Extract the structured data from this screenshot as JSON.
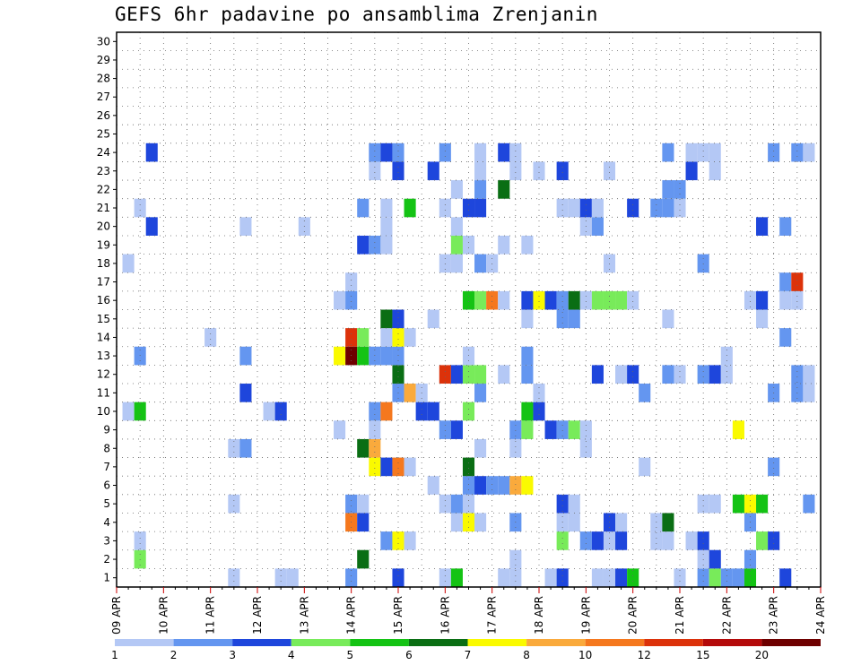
{
  "chart_data": {
    "type": "heatmap",
    "title": "GEFS 6hr padavine po ansamblima Zrenjanin",
    "x_tick_labels": [
      "09 APR",
      "10 APR",
      "11 APR",
      "12 APR",
      "13 APR",
      "14 APR",
      "15 APR",
      "16 APR",
      "17 APR",
      "18 APR",
      "19 APR",
      "20 APR",
      "21 APR",
      "22 APR",
      "23 APR",
      "24 APR"
    ],
    "y_tick_labels": [
      "1",
      "2",
      "3",
      "4",
      "5",
      "6",
      "7",
      "8",
      "9",
      "10",
      "11",
      "12",
      "13",
      "14",
      "15",
      "16",
      "17",
      "18",
      "19",
      "20",
      "21",
      "22",
      "23",
      "24",
      "25",
      "26",
      "27",
      "28",
      "29",
      "30"
    ],
    "y_range": [
      0,
      30
    ],
    "time_steps": 61,
    "time_step_hours": 6,
    "grid": "dotted",
    "legend_placement": "bottom",
    "legend": {
      "thresholds": [
        "1",
        "2",
        "3",
        "4",
        "5",
        "6",
        "7",
        "8",
        "10",
        "12",
        "15",
        "20"
      ],
      "colors": [
        "#b4c8f5",
        "#6496f0",
        "#1e46dc",
        "#78eb5a",
        "#14c314",
        "#0a6e14",
        "#fafa00",
        "#faaa3c",
        "#f5781e",
        "#dc320a",
        "#b40a0a",
        "#6e0000"
      ]
    },
    "cells": [
      [
        10,
        1,
        "#b4c8f5"
      ],
      [
        14,
        1,
        "#b4c8f5"
      ],
      [
        15,
        1,
        "#b4c8f5"
      ],
      [
        20,
        1,
        "#6496f0"
      ],
      [
        24,
        1,
        "#1e46dc"
      ],
      [
        28,
        1,
        "#b4c8f5"
      ],
      [
        29,
        1,
        "#14c314"
      ],
      [
        33,
        1,
        "#b4c8f5"
      ],
      [
        34,
        1,
        "#b4c8f5"
      ],
      [
        37,
        1,
        "#b4c8f5"
      ],
      [
        38,
        1,
        "#1e46dc"
      ],
      [
        41,
        1,
        "#b4c8f5"
      ],
      [
        42,
        1,
        "#b4c8f5"
      ],
      [
        43,
        1,
        "#1e46dc"
      ],
      [
        44,
        1,
        "#14c314"
      ],
      [
        48,
        1,
        "#b4c8f5"
      ],
      [
        50,
        1,
        "#6496f0"
      ],
      [
        51,
        1,
        "#78eb5a"
      ],
      [
        52,
        1,
        "#6496f0"
      ],
      [
        53,
        1,
        "#6496f0"
      ],
      [
        54,
        1,
        "#14c314"
      ],
      [
        57,
        1,
        "#1e46dc"
      ],
      [
        2,
        2,
        "#78eb5a"
      ],
      [
        21,
        2,
        "#0a6e14"
      ],
      [
        34,
        2,
        "#b4c8f5"
      ],
      [
        50,
        2,
        "#b4c8f5"
      ],
      [
        51,
        2,
        "#1e46dc"
      ],
      [
        54,
        2,
        "#6496f0"
      ],
      [
        2,
        3,
        "#b4c8f5"
      ],
      [
        23,
        3,
        "#6496f0"
      ],
      [
        24,
        3,
        "#fafa00"
      ],
      [
        25,
        3,
        "#b4c8f5"
      ],
      [
        38,
        3,
        "#78eb5a"
      ],
      [
        40,
        3,
        "#6496f0"
      ],
      [
        41,
        3,
        "#1e46dc"
      ],
      [
        42,
        3,
        "#b4c8f5"
      ],
      [
        43,
        3,
        "#1e46dc"
      ],
      [
        46,
        3,
        "#b4c8f5"
      ],
      [
        47,
        3,
        "#b4c8f5"
      ],
      [
        49,
        3,
        "#b4c8f5"
      ],
      [
        50,
        3,
        "#1e46dc"
      ],
      [
        55,
        3,
        "#78eb5a"
      ],
      [
        56,
        3,
        "#1e46dc"
      ],
      [
        20,
        4,
        "#f5781e"
      ],
      [
        21,
        4,
        "#1e46dc"
      ],
      [
        29,
        4,
        "#b4c8f5"
      ],
      [
        30,
        4,
        "#fafa00"
      ],
      [
        31,
        4,
        "#b4c8f5"
      ],
      [
        34,
        4,
        "#6496f0"
      ],
      [
        38,
        4,
        "#b4c8f5"
      ],
      [
        39,
        4,
        "#b4c8f5"
      ],
      [
        42,
        4,
        "#1e46dc"
      ],
      [
        43,
        4,
        "#b4c8f5"
      ],
      [
        46,
        4,
        "#b4c8f5"
      ],
      [
        47,
        4,
        "#0a6e14"
      ],
      [
        54,
        4,
        "#6496f0"
      ],
      [
        10,
        5,
        "#b4c8f5"
      ],
      [
        20,
        5,
        "#6496f0"
      ],
      [
        21,
        5,
        "#b4c8f5"
      ],
      [
        28,
        5,
        "#b4c8f5"
      ],
      [
        29,
        5,
        "#6496f0"
      ],
      [
        30,
        5,
        "#b4c8f5"
      ],
      [
        38,
        5,
        "#1e46dc"
      ],
      [
        39,
        5,
        "#b4c8f5"
      ],
      [
        50,
        5,
        "#b4c8f5"
      ],
      [
        51,
        5,
        "#b4c8f5"
      ],
      [
        53,
        5,
        "#14c314"
      ],
      [
        54,
        5,
        "#fafa00"
      ],
      [
        55,
        5,
        "#14c314"
      ],
      [
        59,
        5,
        "#6496f0"
      ],
      [
        27,
        6,
        "#b4c8f5"
      ],
      [
        30,
        6,
        "#6496f0"
      ],
      [
        31,
        6,
        "#1e46dc"
      ],
      [
        32,
        6,
        "#6496f0"
      ],
      [
        33,
        6,
        "#6496f0"
      ],
      [
        34,
        6,
        "#faaa3c"
      ],
      [
        35,
        6,
        "#fafa00"
      ],
      [
        22,
        7,
        "#fafa00"
      ],
      [
        23,
        7,
        "#1e46dc"
      ],
      [
        24,
        7,
        "#f5781e"
      ],
      [
        25,
        7,
        "#b4c8f5"
      ],
      [
        30,
        7,
        "#0a6e14"
      ],
      [
        45,
        7,
        "#b4c8f5"
      ],
      [
        56,
        7,
        "#6496f0"
      ],
      [
        10,
        8,
        "#b4c8f5"
      ],
      [
        11,
        8,
        "#6496f0"
      ],
      [
        21,
        8,
        "#0a6e14"
      ],
      [
        22,
        8,
        "#faaa3c"
      ],
      [
        31,
        8,
        "#b4c8f5"
      ],
      [
        34,
        8,
        "#b4c8f5"
      ],
      [
        40,
        8,
        "#b4c8f5"
      ],
      [
        19,
        9,
        "#b4c8f5"
      ],
      [
        22,
        9,
        "#b4c8f5"
      ],
      [
        28,
        9,
        "#6496f0"
      ],
      [
        29,
        9,
        "#1e46dc"
      ],
      [
        34,
        9,
        "#6496f0"
      ],
      [
        35,
        9,
        "#78eb5a"
      ],
      [
        37,
        9,
        "#1e46dc"
      ],
      [
        38,
        9,
        "#6496f0"
      ],
      [
        39,
        9,
        "#78eb5a"
      ],
      [
        40,
        9,
        "#b4c8f5"
      ],
      [
        53,
        9,
        "#fafa00"
      ],
      [
        1,
        10,
        "#b4c8f5"
      ],
      [
        2,
        10,
        "#14c314"
      ],
      [
        13,
        10,
        "#b4c8f5"
      ],
      [
        14,
        10,
        "#1e46dc"
      ],
      [
        22,
        10,
        "#6496f0"
      ],
      [
        23,
        10,
        "#f5781e"
      ],
      [
        26,
        10,
        "#1e46dc"
      ],
      [
        27,
        10,
        "#1e46dc"
      ],
      [
        30,
        10,
        "#78eb5a"
      ],
      [
        35,
        10,
        "#14c314"
      ],
      [
        36,
        10,
        "#1e46dc"
      ],
      [
        11,
        11,
        "#1e46dc"
      ],
      [
        24,
        11,
        "#6496f0"
      ],
      [
        25,
        11,
        "#faaa3c"
      ],
      [
        26,
        11,
        "#b4c8f5"
      ],
      [
        31,
        11,
        "#6496f0"
      ],
      [
        36,
        11,
        "#b4c8f5"
      ],
      [
        45,
        11,
        "#6496f0"
      ],
      [
        56,
        11,
        "#6496f0"
      ],
      [
        58,
        11,
        "#6496f0"
      ],
      [
        59,
        11,
        "#b4c8f5"
      ],
      [
        24,
        12,
        "#0a6e14"
      ],
      [
        28,
        12,
        "#dc320a"
      ],
      [
        29,
        12,
        "#1e46dc"
      ],
      [
        30,
        12,
        "#78eb5a"
      ],
      [
        31,
        12,
        "#78eb5a"
      ],
      [
        33,
        12,
        "#b4c8f5"
      ],
      [
        35,
        12,
        "#6496f0"
      ],
      [
        41,
        12,
        "#1e46dc"
      ],
      [
        43,
        12,
        "#b4c8f5"
      ],
      [
        44,
        12,
        "#1e46dc"
      ],
      [
        47,
        12,
        "#6496f0"
      ],
      [
        48,
        12,
        "#b4c8f5"
      ],
      [
        50,
        12,
        "#6496f0"
      ],
      [
        51,
        12,
        "#1e46dc"
      ],
      [
        52,
        12,
        "#b4c8f5"
      ],
      [
        58,
        12,
        "#6496f0"
      ],
      [
        59,
        12,
        "#b4c8f5"
      ],
      [
        19,
        13,
        "#fafa00"
      ],
      [
        20,
        13,
        "#6e0000"
      ],
      [
        21,
        13,
        "#14c314"
      ],
      [
        22,
        13,
        "#6496f0"
      ],
      [
        23,
        13,
        "#6496f0"
      ],
      [
        24,
        13,
        "#6496f0"
      ],
      [
        2,
        13,
        "#6496f0"
      ],
      [
        11,
        13,
        "#6496f0"
      ],
      [
        30,
        13,
        "#b4c8f5"
      ],
      [
        35,
        13,
        "#6496f0"
      ],
      [
        52,
        13,
        "#b4c8f5"
      ],
      [
        20,
        14,
        "#dc320a"
      ],
      [
        21,
        14,
        "#78eb5a"
      ],
      [
        23,
        14,
        "#b4c8f5"
      ],
      [
        24,
        14,
        "#fafa00"
      ],
      [
        25,
        14,
        "#b4c8f5"
      ],
      [
        8,
        14,
        "#b4c8f5"
      ],
      [
        57,
        14,
        "#6496f0"
      ],
      [
        23,
        15,
        "#0a6e14"
      ],
      [
        24,
        15,
        "#1e46dc"
      ],
      [
        27,
        15,
        "#b4c8f5"
      ],
      [
        35,
        15,
        "#b4c8f5"
      ],
      [
        38,
        15,
        "#6496f0"
      ],
      [
        39,
        15,
        "#6496f0"
      ],
      [
        47,
        15,
        "#b4c8f5"
      ],
      [
        55,
        15,
        "#b4c8f5"
      ],
      [
        19,
        16,
        "#b4c8f5"
      ],
      [
        20,
        16,
        "#6496f0"
      ],
      [
        30,
        16,
        "#14c314"
      ],
      [
        31,
        16,
        "#78eb5a"
      ],
      [
        32,
        16,
        "#f5781e"
      ],
      [
        33,
        16,
        "#b4c8f5"
      ],
      [
        35,
        16,
        "#1e46dc"
      ],
      [
        36,
        16,
        "#fafa00"
      ],
      [
        37,
        16,
        "#1e46dc"
      ],
      [
        38,
        16,
        "#6496f0"
      ],
      [
        39,
        16,
        "#0a6e14"
      ],
      [
        40,
        16,
        "#b4c8f5"
      ],
      [
        41,
        16,
        "#78eb5a"
      ],
      [
        42,
        16,
        "#78eb5a"
      ],
      [
        43,
        16,
        "#78eb5a"
      ],
      [
        44,
        16,
        "#b4c8f5"
      ],
      [
        54,
        16,
        "#b4c8f5"
      ],
      [
        55,
        16,
        "#1e46dc"
      ],
      [
        57,
        16,
        "#b4c8f5"
      ],
      [
        58,
        16,
        "#b4c8f5"
      ],
      [
        20,
        17,
        "#b4c8f5"
      ],
      [
        57,
        17,
        "#6496f0"
      ],
      [
        58,
        17,
        "#dc320a"
      ],
      [
        1,
        18,
        "#b4c8f5"
      ],
      [
        28,
        18,
        "#b4c8f5"
      ],
      [
        29,
        18,
        "#b4c8f5"
      ],
      [
        31,
        18,
        "#6496f0"
      ],
      [
        32,
        18,
        "#b4c8f5"
      ],
      [
        42,
        18,
        "#b4c8f5"
      ],
      [
        50,
        18,
        "#6496f0"
      ],
      [
        21,
        19,
        "#1e46dc"
      ],
      [
        22,
        19,
        "#6496f0"
      ],
      [
        23,
        19,
        "#b4c8f5"
      ],
      [
        29,
        19,
        "#78eb5a"
      ],
      [
        30,
        19,
        "#b4c8f5"
      ],
      [
        33,
        19,
        "#b4c8f5"
      ],
      [
        35,
        19,
        "#b4c8f5"
      ],
      [
        3,
        20,
        "#1e46dc"
      ],
      [
        11,
        20,
        "#b4c8f5"
      ],
      [
        16,
        20,
        "#b4c8f5"
      ],
      [
        23,
        20,
        "#b4c8f5"
      ],
      [
        29,
        20,
        "#b4c8f5"
      ],
      [
        40,
        20,
        "#b4c8f5"
      ],
      [
        41,
        20,
        "#6496f0"
      ],
      [
        55,
        20,
        "#1e46dc"
      ],
      [
        57,
        20,
        "#6496f0"
      ],
      [
        2,
        21,
        "#b4c8f5"
      ],
      [
        21,
        21,
        "#6496f0"
      ],
      [
        23,
        21,
        "#b4c8f5"
      ],
      [
        25,
        21,
        "#14c314"
      ],
      [
        28,
        21,
        "#b4c8f5"
      ],
      [
        30,
        21,
        "#1e46dc"
      ],
      [
        31,
        21,
        "#1e46dc"
      ],
      [
        38,
        21,
        "#b4c8f5"
      ],
      [
        39,
        21,
        "#b4c8f5"
      ],
      [
        40,
        21,
        "#1e46dc"
      ],
      [
        41,
        21,
        "#b4c8f5"
      ],
      [
        44,
        21,
        "#1e46dc"
      ],
      [
        46,
        21,
        "#6496f0"
      ],
      [
        47,
        21,
        "#6496f0"
      ],
      [
        48,
        21,
        "#b4c8f5"
      ],
      [
        29,
        22,
        "#b4c8f5"
      ],
      [
        31,
        22,
        "#6496f0"
      ],
      [
        33,
        22,
        "#0a6e14"
      ],
      [
        47,
        22,
        "#6496f0"
      ],
      [
        48,
        22,
        "#6496f0"
      ],
      [
        22,
        23,
        "#b4c8f5"
      ],
      [
        24,
        23,
        "#1e46dc"
      ],
      [
        27,
        23,
        "#1e46dc"
      ],
      [
        31,
        23,
        "#b4c8f5"
      ],
      [
        34,
        23,
        "#b4c8f5"
      ],
      [
        36,
        23,
        "#b4c8f5"
      ],
      [
        38,
        23,
        "#1e46dc"
      ],
      [
        42,
        23,
        "#b4c8f5"
      ],
      [
        49,
        23,
        "#1e46dc"
      ],
      [
        51,
        23,
        "#b4c8f5"
      ],
      [
        3,
        24,
        "#1e46dc"
      ],
      [
        22,
        24,
        "#6496f0"
      ],
      [
        23,
        24,
        "#1e46dc"
      ],
      [
        24,
        24,
        "#6496f0"
      ],
      [
        28,
        24,
        "#6496f0"
      ],
      [
        31,
        24,
        "#b4c8f5"
      ],
      [
        33,
        24,
        "#1e46dc"
      ],
      [
        34,
        24,
        "#b4c8f5"
      ],
      [
        47,
        24,
        "#6496f0"
      ],
      [
        49,
        24,
        "#b4c8f5"
      ],
      [
        50,
        24,
        "#b4c8f5"
      ],
      [
        51,
        24,
        "#b4c8f5"
      ],
      [
        56,
        24,
        "#6496f0"
      ],
      [
        58,
        24,
        "#6496f0"
      ],
      [
        59,
        24,
        "#b4c8f5"
      ]
    ]
  }
}
